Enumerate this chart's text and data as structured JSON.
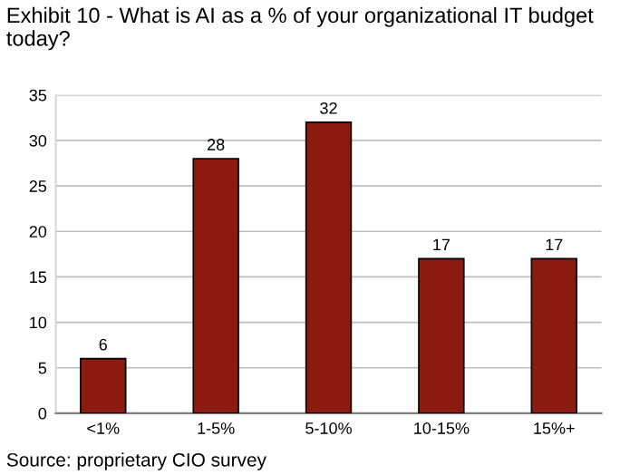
{
  "chart_data": {
    "type": "bar",
    "title": "Exhibit 10 - What is AI as a % of your organizational IT budget today?",
    "categories": [
      "<1%",
      "1-5%",
      "5-10%",
      "10-15%",
      "15%+"
    ],
    "values": [
      6,
      28,
      32,
      17,
      17
    ],
    "color": "#8b1a10",
    "ylim": [
      0,
      35
    ],
    "yticks": [
      0,
      5,
      10,
      15,
      20,
      25,
      30,
      35
    ],
    "grid": "y",
    "data_labels": true,
    "annotations": [
      "Source: proprietary CIO survey"
    ]
  }
}
